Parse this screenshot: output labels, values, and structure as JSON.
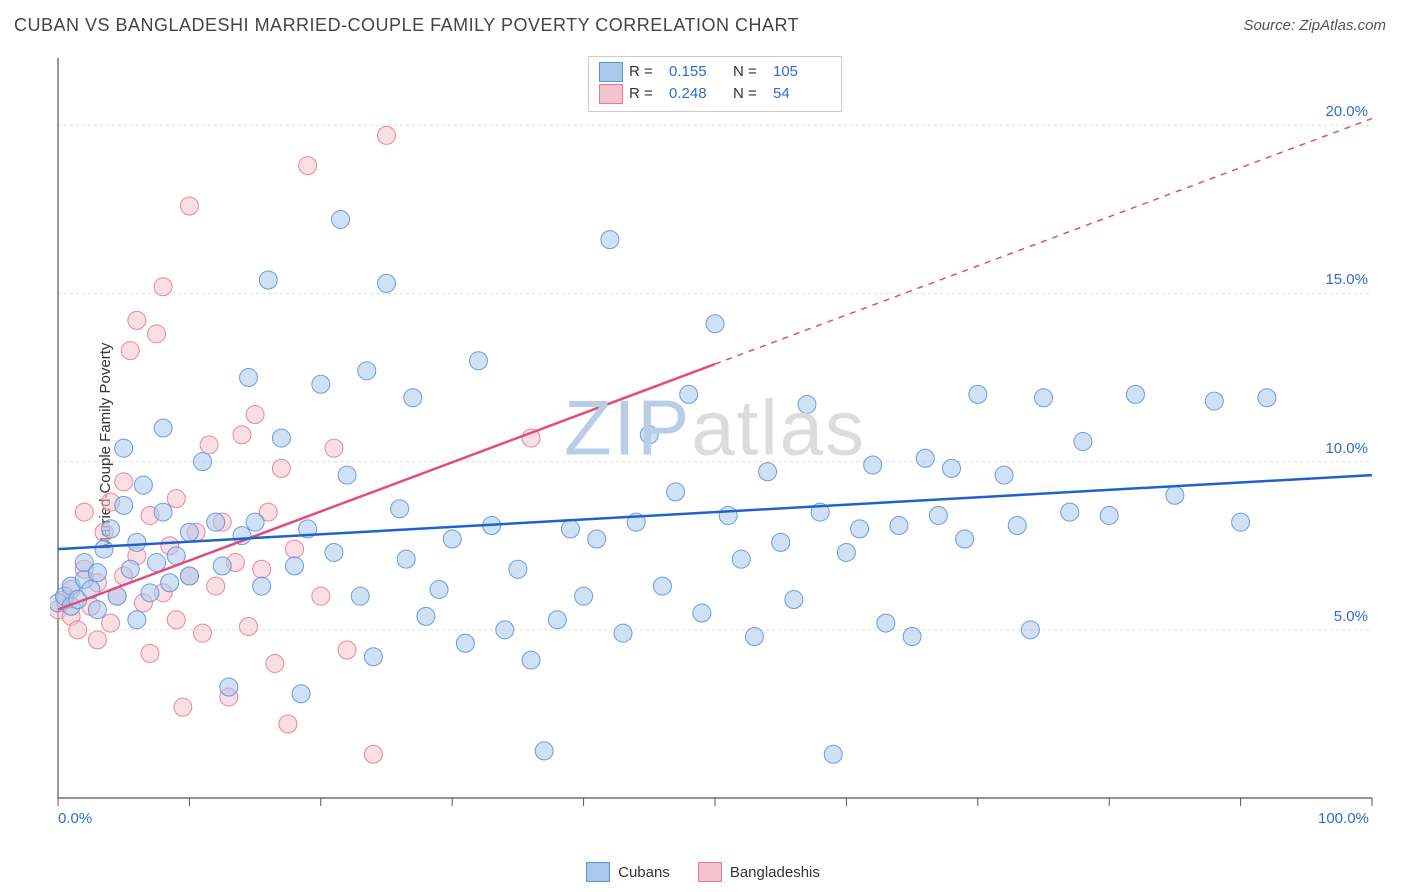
{
  "header": {
    "title": "CUBAN VS BANGLADESHI MARRIED-COUPLE FAMILY POVERTY CORRELATION CHART",
    "source": "Source: ZipAtlas.com",
    "title_color": "#444444",
    "title_fontsize": 18,
    "source_color": "#555555",
    "source_fontsize": 15
  },
  "watermark": {
    "text_a": "ZIP",
    "text_b": "atlas",
    "color_a": "#b9cde6",
    "color_b": "#dcdcdc",
    "fontsize": 78
  },
  "ylabel": {
    "text": "Married-Couple Family Poverty",
    "fontsize": 15,
    "color": "#333333"
  },
  "chart": {
    "type": "scatter",
    "background_color": "#ffffff",
    "axis_color": "#555555",
    "grid_color": "#dddddd",
    "grid_dash": "3,3",
    "tick_color": "#555555",
    "tick_label_color": "#2f6bd0",
    "xlim": [
      0,
      100
    ],
    "ylim": [
      0,
      22
    ],
    "x_ticks": [
      0,
      10,
      20,
      30,
      40,
      50,
      60,
      70,
      80,
      90,
      100
    ],
    "x_tick_labels_shown": {
      "0": "0.0%",
      "100": "100.0%"
    },
    "y_ticks": [
      5,
      10,
      15,
      20
    ],
    "y_tick_labels": {
      "5": "5.0%",
      "10": "10.0%",
      "15": "15.0%",
      "20": "20.0%"
    },
    "marker_radius": 9,
    "marker_opacity": 0.55,
    "marker_stroke_opacity": 0.9,
    "line_width": 2.5
  },
  "series": {
    "cubans": {
      "label": "Cubans",
      "fill": "#a9c9ec",
      "stroke": "#5c93d6",
      "line_color": "#1f63c9",
      "R": "0.155",
      "N": "105",
      "trend": {
        "x1": 0,
        "y1": 7.4,
        "x2": 100,
        "y2": 9.6,
        "dashed_from_x": null
      },
      "points": [
        [
          0,
          5.8
        ],
        [
          0.5,
          6.0
        ],
        [
          1,
          5.7
        ],
        [
          1,
          6.3
        ],
        [
          1.5,
          5.9
        ],
        [
          2,
          6.5
        ],
        [
          2,
          7.0
        ],
        [
          2.5,
          6.2
        ],
        [
          3,
          6.7
        ],
        [
          3,
          5.6
        ],
        [
          3.5,
          7.4
        ],
        [
          4,
          8.0
        ],
        [
          4.5,
          6.0
        ],
        [
          5,
          8.7
        ],
        [
          5,
          10.4
        ],
        [
          5.5,
          6.8
        ],
        [
          6,
          7.6
        ],
        [
          6,
          5.3
        ],
        [
          6.5,
          9.3
        ],
        [
          7,
          6.1
        ],
        [
          7.5,
          7.0
        ],
        [
          8,
          8.5
        ],
        [
          8,
          11.0
        ],
        [
          8.5,
          6.4
        ],
        [
          9,
          7.2
        ],
        [
          10,
          7.9
        ],
        [
          10,
          6.6
        ],
        [
          11,
          10.0
        ],
        [
          12,
          8.2
        ],
        [
          12.5,
          6.9
        ],
        [
          13,
          3.3
        ],
        [
          14,
          7.8
        ],
        [
          14.5,
          12.5
        ],
        [
          15,
          8.2
        ],
        [
          15.5,
          6.3
        ],
        [
          16,
          15.4
        ],
        [
          17,
          10.7
        ],
        [
          18,
          6.9
        ],
        [
          18.5,
          3.1
        ],
        [
          19,
          8.0
        ],
        [
          20,
          12.3
        ],
        [
          21,
          7.3
        ],
        [
          21.5,
          17.2
        ],
        [
          22,
          9.6
        ],
        [
          23,
          6.0
        ],
        [
          23.5,
          12.7
        ],
        [
          24,
          4.2
        ],
        [
          25,
          15.3
        ],
        [
          26,
          8.6
        ],
        [
          26.5,
          7.1
        ],
        [
          27,
          11.9
        ],
        [
          28,
          5.4
        ],
        [
          29,
          6.2
        ],
        [
          30,
          7.7
        ],
        [
          31,
          4.6
        ],
        [
          32,
          13.0
        ],
        [
          33,
          8.1
        ],
        [
          34,
          5.0
        ],
        [
          35,
          6.8
        ],
        [
          36,
          4.1
        ],
        [
          37,
          1.4
        ],
        [
          38,
          5.3
        ],
        [
          39,
          8.0
        ],
        [
          40,
          6.0
        ],
        [
          41,
          7.7
        ],
        [
          42,
          16.6
        ],
        [
          43,
          4.9
        ],
        [
          44,
          8.2
        ],
        [
          45,
          10.8
        ],
        [
          46,
          6.3
        ],
        [
          47,
          9.1
        ],
        [
          48,
          12.0
        ],
        [
          49,
          5.5
        ],
        [
          50,
          14.1
        ],
        [
          51,
          8.4
        ],
        [
          52,
          7.1
        ],
        [
          53,
          4.8
        ],
        [
          54,
          9.7
        ],
        [
          55,
          7.6
        ],
        [
          56,
          5.9
        ],
        [
          57,
          11.7
        ],
        [
          58,
          8.5
        ],
        [
          59,
          1.3
        ],
        [
          60,
          7.3
        ],
        [
          61,
          8.0
        ],
        [
          62,
          9.9
        ],
        [
          63,
          5.2
        ],
        [
          64,
          8.1
        ],
        [
          65,
          4.8
        ],
        [
          66,
          10.1
        ],
        [
          67,
          8.4
        ],
        [
          68,
          9.8
        ],
        [
          69,
          7.7
        ],
        [
          70,
          12.0
        ],
        [
          72,
          9.6
        ],
        [
          73,
          8.1
        ],
        [
          74,
          5.0
        ],
        [
          75,
          11.9
        ],
        [
          77,
          8.5
        ],
        [
          78,
          10.6
        ],
        [
          80,
          8.4
        ],
        [
          82,
          12.0
        ],
        [
          85,
          9.0
        ],
        [
          88,
          11.8
        ],
        [
          90,
          8.2
        ],
        [
          92,
          11.9
        ]
      ]
    },
    "bangladeshis": {
      "label": "Bangladeshis",
      "fill": "#f4c2ce",
      "stroke": "#e77a98",
      "line_color": "#e04d7c",
      "R": "0.248",
      "N": "54",
      "trend": {
        "x1": 0,
        "y1": 5.6,
        "x2": 100,
        "y2": 20.2,
        "dashed_from_x": 50
      },
      "points": [
        [
          0,
          5.6
        ],
        [
          0.5,
          5.9
        ],
        [
          1,
          5.4
        ],
        [
          1,
          6.2
        ],
        [
          1.5,
          5.0
        ],
        [
          2,
          6.8
        ],
        [
          2,
          8.5
        ],
        [
          2.5,
          5.7
        ],
        [
          3,
          6.4
        ],
        [
          3,
          4.7
        ],
        [
          3.5,
          7.9
        ],
        [
          4,
          8.8
        ],
        [
          4,
          5.2
        ],
        [
          4.5,
          6.0
        ],
        [
          5,
          9.4
        ],
        [
          5,
          6.6
        ],
        [
          5.5,
          13.3
        ],
        [
          6,
          7.2
        ],
        [
          6,
          14.2
        ],
        [
          6.5,
          5.8
        ],
        [
          7,
          8.4
        ],
        [
          7,
          4.3
        ],
        [
          7.5,
          13.8
        ],
        [
          8,
          6.1
        ],
        [
          8,
          15.2
        ],
        [
          8.5,
          7.5
        ],
        [
          9,
          8.9
        ],
        [
          9,
          5.3
        ],
        [
          9.5,
          2.7
        ],
        [
          10,
          6.6
        ],
        [
          10,
          17.6
        ],
        [
          10.5,
          7.9
        ],
        [
          11,
          4.9
        ],
        [
          11.5,
          10.5
        ],
        [
          12,
          6.3
        ],
        [
          12.5,
          8.2
        ],
        [
          13,
          3.0
        ],
        [
          13.5,
          7.0
        ],
        [
          14,
          10.8
        ],
        [
          14.5,
          5.1
        ],
        [
          15,
          11.4
        ],
        [
          15.5,
          6.8
        ],
        [
          16,
          8.5
        ],
        [
          16.5,
          4.0
        ],
        [
          17,
          9.8
        ],
        [
          17.5,
          2.2
        ],
        [
          18,
          7.4
        ],
        [
          19,
          18.8
        ],
        [
          20,
          6.0
        ],
        [
          21,
          10.4
        ],
        [
          22,
          4.4
        ],
        [
          24,
          1.3
        ],
        [
          25,
          19.7
        ],
        [
          36,
          10.7
        ]
      ]
    }
  },
  "legend_top": {
    "R_label": "R =",
    "N_label": "N ="
  }
}
